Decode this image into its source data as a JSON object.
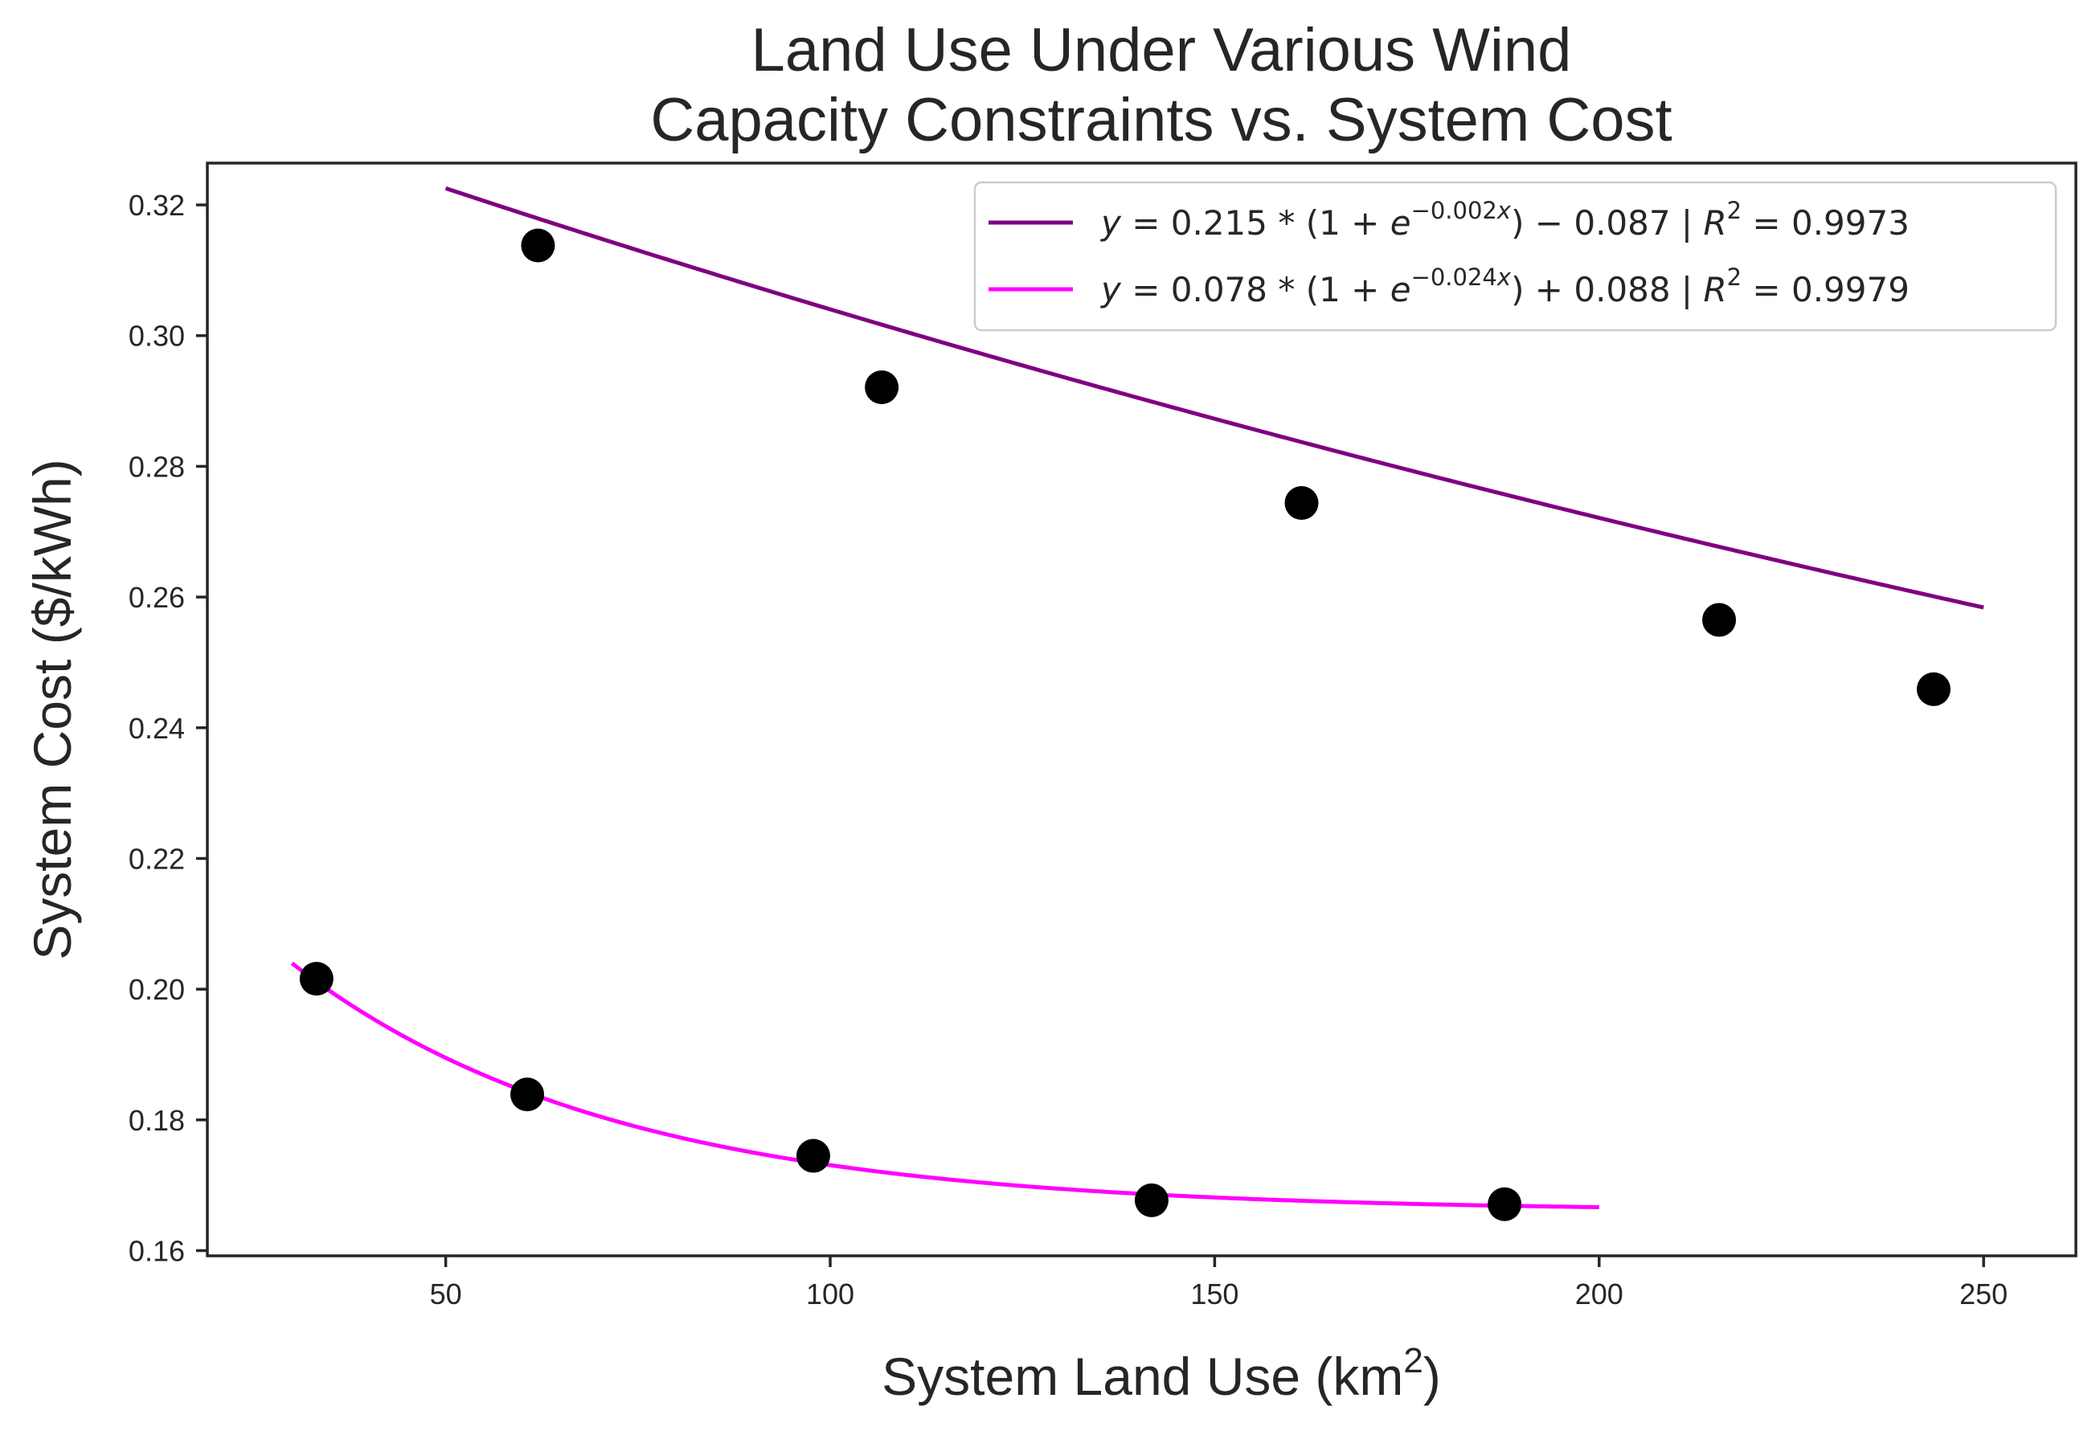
{
  "chart_data": {
    "type": "scatter",
    "title_lines": [
      "Land Use Under Various Wind",
      "Capacity Constraints vs. System Cost"
    ],
    "xlabel": "System Land Use (km",
    "xlabel_superscript": "2",
    "xlabel_suffix": ")",
    "ylabel": "System Cost ($/kWh)",
    "xlim": [
      19,
      262
    ],
    "ylim": [
      0.1592,
      0.3264
    ],
    "x_ticks": [
      50,
      100,
      150,
      200,
      250
    ],
    "y_ticks": [
      0.16,
      0.18,
      0.2,
      0.22,
      0.24,
      0.26,
      0.28,
      0.3,
      0.32
    ],
    "x_tick_labels": [
      "50",
      "100",
      "150",
      "200",
      "250"
    ],
    "y_tick_labels": [
      "0.16",
      "0.18",
      "0.20",
      "0.22",
      "0.24",
      "0.26",
      "0.28",
      "0.30",
      "0.32"
    ],
    "marker_color": "#000000",
    "legend_position": "top-right",
    "grid": false,
    "scatter_series": [
      {
        "x": [
          62,
          106.7,
          161.3,
          215.6,
          243.5
        ],
        "y": [
          0.3138,
          0.2921,
          0.2744,
          0.2565,
          0.2459
        ]
      },
      {
        "x": [
          33.2,
          60.6,
          97.8,
          141.8,
          187.7
        ],
        "y": [
          0.2016,
          0.1839,
          0.1745,
          0.1677,
          0.1671
        ]
      }
    ],
    "fit_series": [
      {
        "color": "#800080",
        "a": 0.215,
        "k": -0.002,
        "c": -0.087,
        "x_range": [
          50,
          250
        ],
        "legend": {
          "eq_a": "0.215",
          "exp_k": "−0.002",
          "eq_tail": ") − 0.087",
          "r2": "0.9973"
        }
      },
      {
        "color": "#ff00ff",
        "a": 0.078,
        "k": -0.024,
        "c": 0.088,
        "x_range": [
          30,
          200
        ],
        "legend": {
          "eq_a": "0.078",
          "exp_k": "−0.024",
          "eq_tail": ") + 0.088",
          "r2": "0.9979"
        }
      }
    ]
  }
}
